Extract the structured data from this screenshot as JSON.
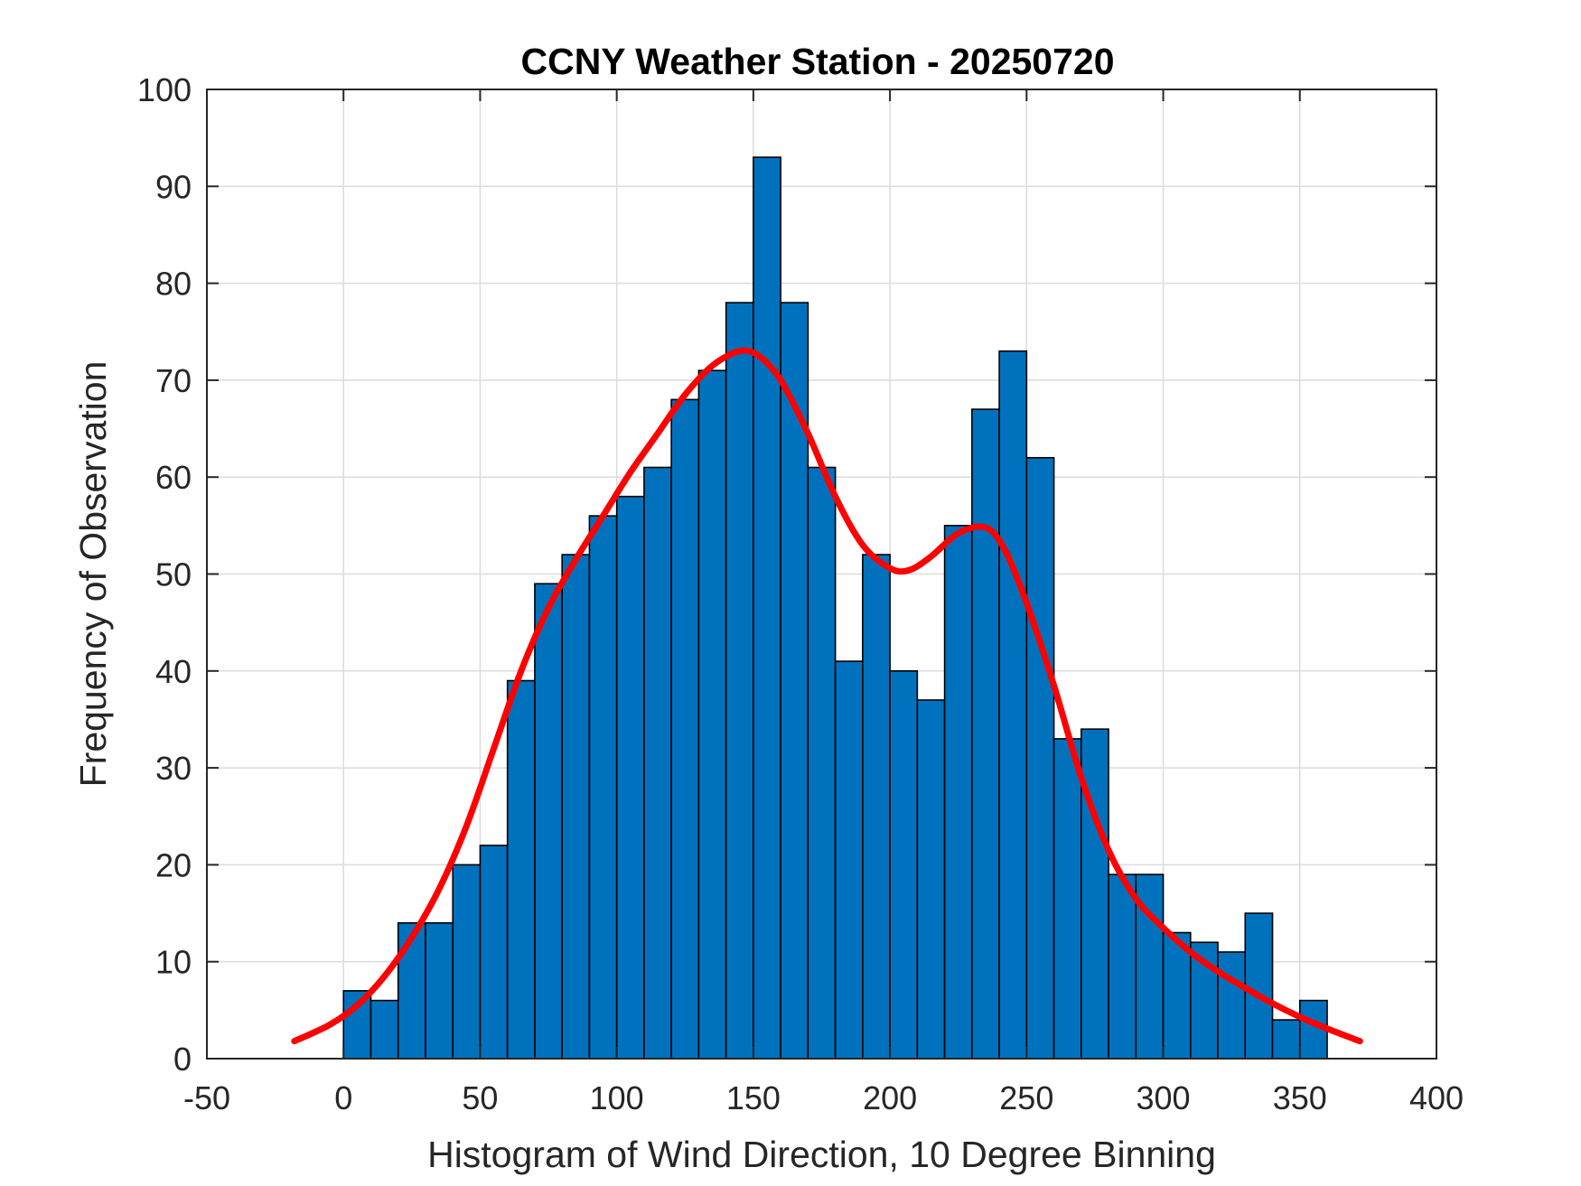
{
  "chart_data": {
    "type": "bar",
    "title": "CCNY Weather Station - 20250720",
    "xlabel": "Histogram of Wind Direction, 10 Degree Binning",
    "ylabel": "Frequency of Observation",
    "xlim": [
      -50,
      400
    ],
    "ylim": [
      0,
      100
    ],
    "xticks": [
      -50,
      0,
      50,
      100,
      150,
      200,
      250,
      300,
      350,
      400
    ],
    "yticks": [
      0,
      10,
      20,
      30,
      40,
      50,
      60,
      70,
      80,
      90,
      100
    ],
    "grid": true,
    "bin_width": 10,
    "bin_edges_start": [
      0,
      10,
      20,
      30,
      40,
      50,
      60,
      70,
      80,
      90,
      100,
      110,
      120,
      130,
      140,
      150,
      160,
      170,
      180,
      190,
      200,
      210,
      220,
      230,
      240,
      250,
      260,
      270,
      280,
      290,
      300,
      310,
      320,
      330,
      340,
      350
    ],
    "values": [
      7,
      6,
      14,
      14,
      20,
      22,
      39,
      49,
      52,
      56,
      58,
      61,
      68,
      71,
      78,
      93,
      78,
      61,
      41,
      52,
      40,
      37,
      55,
      67,
      73,
      62,
      33,
      34,
      19,
      19,
      13,
      12,
      11,
      15,
      4,
      6
    ],
    "bar_color": "#0072BD",
    "fit_curve": {
      "color": "#FF0000",
      "x": [
        -18,
        -5,
        5,
        15,
        25,
        35,
        45,
        55,
        65,
        75,
        85,
        95,
        105,
        115,
        125,
        135,
        145,
        152,
        160,
        170,
        180,
        190,
        200,
        207,
        215,
        225,
        235,
        242,
        250,
        260,
        270,
        280,
        290,
        300,
        310,
        320,
        330,
        340,
        350,
        360,
        372
      ],
      "y": [
        1.8,
        3.5,
        5.5,
        8.5,
        12.5,
        17.5,
        24,
        32,
        40,
        46.5,
        51.5,
        56,
        60.5,
        64.5,
        68.5,
        71.5,
        73,
        72.5,
        70,
        64.5,
        58,
        53,
        50.6,
        50.4,
        51.8,
        54.2,
        54.8,
        52.5,
        47,
        38.5,
        29,
        21.5,
        16.5,
        13.5,
        11,
        9,
        7.3,
        5.7,
        4.3,
        3.1,
        1.8
      ]
    }
  }
}
